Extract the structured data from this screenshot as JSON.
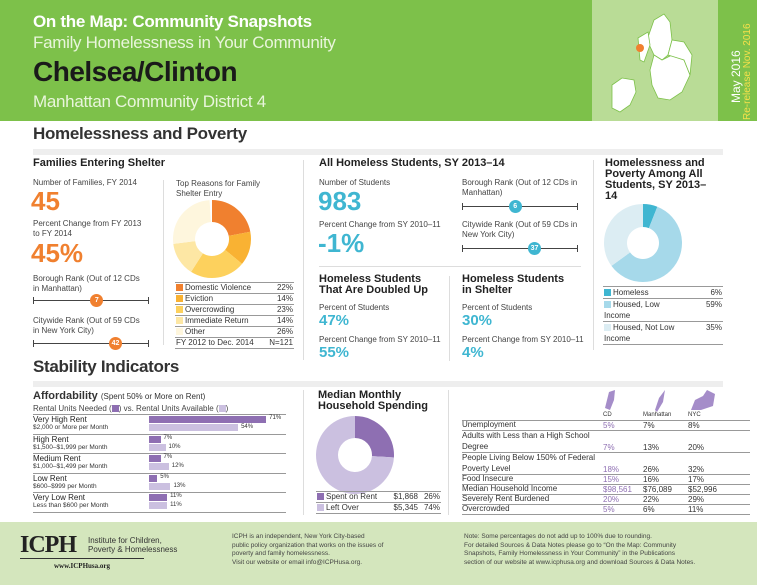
{
  "header": {
    "series": "On the Map: Community Snapshots",
    "subtitle": "Family Homelessness in Your Community",
    "district_name": "Chelsea/Clinton",
    "district": "Manhattan Community District 4",
    "date": "May 2016",
    "rerelease": "Re-release Nov. 2016"
  },
  "colors": {
    "header_green": "#7dc14a",
    "orange": "#f0802f",
    "blue": "#3fb6d1",
    "purple": "#8e6fb2"
  },
  "sections": {
    "homelessness": "Homelessness and Poverty",
    "stability": "Stability Indicators"
  },
  "families": {
    "title": "Families Entering Shelter",
    "num_label": "Number of Families, FY 2014",
    "num": "45",
    "pct_label": "Percent Change from FY 2013 to FY 2014",
    "pct": "45%",
    "borough_label": "Borough Rank (Out of 12 CDs in Manhattan)",
    "borough_rank": 7,
    "borough_total": 12,
    "city_label": "Citywide Rank (Out of 59 CDs in New York City)",
    "city_rank": 42,
    "city_total": 59,
    "reasons_title": "Top Reasons for Family Shelter Entry",
    "reasons": [
      {
        "label": "Domestic Violence",
        "value": 22,
        "pct": "22%",
        "color": "#f0802f"
      },
      {
        "label": "Eviction",
        "value": 14,
        "pct": "14%",
        "color": "#f9b233"
      },
      {
        "label": "Overcrowding",
        "value": 23,
        "pct": "23%",
        "color": "#fdd15d"
      },
      {
        "label": "Immediate Return",
        "value": 14,
        "pct": "14%",
        "color": "#fde7a4"
      },
      {
        "label": "Other",
        "value": 26,
        "pct": "26%",
        "color": "#fef6dd"
      }
    ],
    "reasons_period": "FY 2012 to Dec. 2014",
    "reasons_n": "N=121"
  },
  "students": {
    "title": "All Homeless Students, SY 2013–14",
    "num_label": "Number of Students",
    "num": "983",
    "pct_label": "Percent Change from SY 2010–11",
    "pct": "-1%",
    "borough_label": "Borough Rank (Out of 12 CDs in Manhattan)",
    "borough_rank": 6,
    "borough_total": 12,
    "city_label": "Citywide Rank (Out of 59 CDs in New York City)",
    "city_rank": 37,
    "city_total": 59,
    "doubled": {
      "title": "Homeless Students That Are Doubled Up",
      "pct_label": "Percent of Students",
      "pct": "47%",
      "chg_label": "Percent Change from SY 2010–11",
      "chg": "55%"
    },
    "shelter": {
      "title": "Homeless Students in Shelter",
      "pct_label": "Percent of Students",
      "pct": "30%",
      "chg_label": "Percent Change from SY 2010–11",
      "chg": "4%"
    }
  },
  "poverty": {
    "title": "Homelessness and Poverty Among All Students, SY 2013–14",
    "slices": [
      {
        "label": "Homeless",
        "value": 6,
        "pct": "6%",
        "color": "#3fb6d1"
      },
      {
        "label": "Housed, Low Income",
        "value": 59,
        "pct": "59%",
        "color": "#a6d9ea"
      },
      {
        "label": "Housed, Not Low Income",
        "value": 35,
        "pct": "35%",
        "color": "#dcedf3"
      }
    ]
  },
  "affordability": {
    "title": "Affordability",
    "title_note": "(Spent 50% or More on Rent)",
    "subtitle_a": "Rental Units Needed (",
    "subtitle_b": ") vs. Rental Units Available (",
    "subtitle_c": ")",
    "needed_color": "#8e6fb2",
    "available_color": "#cbc0e0",
    "rows": [
      {
        "label": "Very High Rent",
        "range": "$2,000 or More per Month",
        "needed": 71,
        "available": 54,
        "needed_t": "71%",
        "available_t": "54%"
      },
      {
        "label": "High Rent",
        "range": "$1,500–$1,999 per Month",
        "needed": 7,
        "available": 10,
        "needed_t": "7%",
        "available_t": "10%"
      },
      {
        "label": "Medium Rent",
        "range": "$1,000–$1,499 per Month",
        "needed": 7,
        "available": 12,
        "needed_t": "7%",
        "available_t": "12%"
      },
      {
        "label": "Low Rent",
        "range": "$600–$999 per Month",
        "needed": 5,
        "available": 13,
        "needed_t": "5%",
        "available_t": "13%"
      },
      {
        "label": "Very Low Rent",
        "range": "Less than $600 per Month",
        "needed": 11,
        "available": 11,
        "needed_t": "11%",
        "available_t": "11%"
      }
    ]
  },
  "spending": {
    "title": "Median Monthly Household Spending",
    "slices": [
      {
        "label": "Spent on Rent",
        "amount": "$1,868",
        "value": 26,
        "pct": "26%",
        "color": "#8e6fb2"
      },
      {
        "label": "Left Over",
        "amount": "$5,345",
        "value": 74,
        "pct": "74%",
        "color": "#cbc0e0"
      }
    ]
  },
  "indicators": {
    "columns": [
      "CD",
      "Manhattan",
      "NYC"
    ],
    "rows": [
      {
        "label": "Unemployment",
        "v": [
          "5%",
          "7%",
          "8%"
        ]
      },
      {
        "label": "Adults with Less than a High School Degree",
        "v": [
          "7%",
          "13%",
          "20%"
        ]
      },
      {
        "label": "People Living Below 150% of Federal Poverty Level",
        "v": [
          "18%",
          "26%",
          "32%"
        ]
      },
      {
        "label": "Food Insecure",
        "v": [
          "15%",
          "16%",
          "17%"
        ]
      },
      {
        "label": "Median Household Income",
        "v": [
          "$98,561",
          "$76,089",
          "$52,996"
        ]
      },
      {
        "label": "Severely Rent Burdened",
        "v": [
          "20%",
          "22%",
          "29%"
        ]
      },
      {
        "label": "Overcrowded",
        "v": [
          "5%",
          "6%",
          "11%"
        ]
      }
    ]
  },
  "footer": {
    "logo": "ICPH",
    "org_name_1": "Institute for Children,",
    "org_name_2": "Poverty & Homelessness",
    "url": "www.ICPHusa.org",
    "about": [
      "ICPH is an independent, New York City-based",
      "public policy organization that works on the issues of",
      "poverty and family homelessness.",
      "Visit our website or email info@ICPHusa.org."
    ],
    "note": [
      "Note: Some percentages do not add up to 100% due to rounding.",
      "For detailed Sources & Data Notes please go to “On the Map: Community",
      "Snapshots, Family Homelessness in Your Community” in the Publications",
      "section of our website at www.icphusa.org and download Sources & Data Notes."
    ]
  }
}
